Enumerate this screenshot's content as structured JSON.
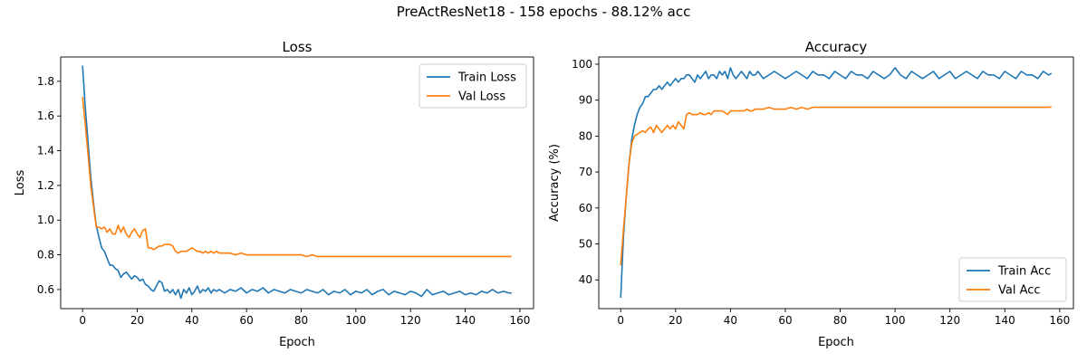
{
  "figure": {
    "title": "PreActResNet18 - 158 epochs - 88.12% acc"
  },
  "colors": {
    "train": "#1f77b4",
    "val": "#ff7f0e",
    "axis": "#000000",
    "legend_border": "#cccccc"
  },
  "chart_data": [
    {
      "type": "line",
      "title": "Loss",
      "xlabel": "Epoch",
      "ylabel": "Loss",
      "xlim": [
        -8,
        165
      ],
      "ylim": [
        0.49,
        1.94
      ],
      "xticks": [
        0,
        20,
        40,
        60,
        80,
        100,
        120,
        140,
        160
      ],
      "yticks": [
        0.6,
        0.8,
        1.0,
        1.2,
        1.4,
        1.6,
        1.8
      ],
      "ytick_labels": [
        "0.6",
        "0.8",
        "1.0",
        "1.2",
        "1.4",
        "1.6",
        "1.8"
      ],
      "grid": false,
      "legend_position": "top-right",
      "series": [
        {
          "name": "Train Loss",
          "color": "#1f77b4",
          "x": [
            0,
            1,
            2,
            3,
            4,
            5,
            6,
            7,
            8,
            9,
            10,
            11,
            12,
            13,
            14,
            15,
            16,
            17,
            18,
            19,
            20,
            21,
            22,
            23,
            24,
            25,
            26,
            27,
            28,
            29,
            30,
            31,
            32,
            33,
            34,
            35,
            36,
            37,
            38,
            39,
            40,
            41,
            42,
            43,
            44,
            45,
            46,
            47,
            48,
            49,
            50,
            52,
            54,
            56,
            58,
            60,
            62,
            64,
            66,
            68,
            70,
            72,
            74,
            76,
            78,
            80,
            82,
            84,
            86,
            88,
            90,
            92,
            94,
            96,
            98,
            100,
            102,
            104,
            106,
            108,
            110,
            112,
            114,
            116,
            118,
            120,
            122,
            124,
            126,
            128,
            130,
            132,
            134,
            136,
            138,
            140,
            142,
            144,
            146,
            148,
            150,
            152,
            154,
            156,
            157
          ],
          "y": [
            1.89,
            1.65,
            1.45,
            1.25,
            1.1,
            0.97,
            0.9,
            0.84,
            0.82,
            0.78,
            0.74,
            0.74,
            0.72,
            0.71,
            0.67,
            0.69,
            0.7,
            0.68,
            0.66,
            0.68,
            0.67,
            0.65,
            0.66,
            0.63,
            0.62,
            0.6,
            0.59,
            0.62,
            0.65,
            0.64,
            0.59,
            0.6,
            0.58,
            0.6,
            0.57,
            0.6,
            0.55,
            0.6,
            0.58,
            0.61,
            0.57,
            0.59,
            0.62,
            0.58,
            0.6,
            0.59,
            0.61,
            0.58,
            0.6,
            0.59,
            0.6,
            0.58,
            0.6,
            0.59,
            0.61,
            0.58,
            0.6,
            0.59,
            0.61,
            0.58,
            0.6,
            0.59,
            0.58,
            0.6,
            0.59,
            0.58,
            0.6,
            0.59,
            0.58,
            0.6,
            0.57,
            0.59,
            0.58,
            0.6,
            0.57,
            0.59,
            0.58,
            0.6,
            0.57,
            0.59,
            0.6,
            0.57,
            0.59,
            0.58,
            0.57,
            0.59,
            0.58,
            0.56,
            0.6,
            0.57,
            0.58,
            0.59,
            0.57,
            0.58,
            0.59,
            0.57,
            0.58,
            0.57,
            0.59,
            0.58,
            0.6,
            0.58,
            0.59,
            0.58,
            0.58
          ]
        },
        {
          "name": "Val Loss",
          "color": "#ff7f0e",
          "x": [
            0,
            1,
            2,
            3,
            4,
            5,
            6,
            7,
            8,
            9,
            10,
            11,
            12,
            13,
            14,
            15,
            16,
            17,
            18,
            19,
            20,
            21,
            22,
            23,
            24,
            25,
            26,
            27,
            28,
            29,
            30,
            31,
            32,
            33,
            34,
            35,
            36,
            37,
            38,
            39,
            40,
            41,
            42,
            43,
            44,
            45,
            46,
            47,
            48,
            49,
            50,
            52,
            54,
            56,
            58,
            60,
            62,
            64,
            66,
            68,
            70,
            72,
            74,
            76,
            78,
            80,
            82,
            84,
            86,
            88,
            90,
            92,
            94,
            96,
            98,
            100,
            102,
            104,
            106,
            108,
            110,
            112,
            114,
            116,
            118,
            120,
            122,
            124,
            126,
            128,
            130,
            132,
            134,
            136,
            138,
            140,
            142,
            144,
            146,
            148,
            150,
            152,
            154,
            156,
            157
          ],
          "y": [
            1.71,
            1.55,
            1.38,
            1.2,
            1.08,
            0.96,
            0.96,
            0.95,
            0.96,
            0.93,
            0.95,
            0.92,
            0.92,
            0.97,
            0.93,
            0.96,
            0.92,
            0.9,
            0.93,
            0.95,
            0.92,
            0.9,
            0.94,
            0.95,
            0.84,
            0.84,
            0.83,
            0.84,
            0.85,
            0.85,
            0.86,
            0.86,
            0.86,
            0.85,
            0.82,
            0.81,
            0.82,
            0.82,
            0.82,
            0.83,
            0.84,
            0.83,
            0.82,
            0.82,
            0.81,
            0.82,
            0.81,
            0.82,
            0.81,
            0.82,
            0.81,
            0.81,
            0.81,
            0.8,
            0.81,
            0.8,
            0.8,
            0.8,
            0.8,
            0.8,
            0.8,
            0.8,
            0.8,
            0.8,
            0.8,
            0.8,
            0.79,
            0.8,
            0.79,
            0.79,
            0.79,
            0.79,
            0.79,
            0.79,
            0.79,
            0.79,
            0.79,
            0.79,
            0.79,
            0.79,
            0.79,
            0.79,
            0.79,
            0.79,
            0.79,
            0.79,
            0.79,
            0.79,
            0.79,
            0.79,
            0.79,
            0.79,
            0.79,
            0.79,
            0.79,
            0.79,
            0.79,
            0.79,
            0.79,
            0.79,
            0.79,
            0.79,
            0.79,
            0.79,
            0.79
          ]
        }
      ]
    },
    {
      "type": "line",
      "title": "Accuracy",
      "xlabel": "Epoch",
      "ylabel": "Accuracy (%)",
      "xlim": [
        -8,
        165
      ],
      "ylim": [
        32,
        102
      ],
      "xticks": [
        0,
        20,
        40,
        60,
        80,
        100,
        120,
        140,
        160
      ],
      "yticks": [
        40,
        50,
        60,
        70,
        80,
        90,
        100
      ],
      "ytick_labels": [
        "40",
        "50",
        "60",
        "70",
        "80",
        "90",
        "100"
      ],
      "grid": false,
      "legend_position": "bottom-right",
      "series": [
        {
          "name": "Train Acc",
          "color": "#1f77b4",
          "x": [
            0,
            1,
            2,
            3,
            4,
            5,
            6,
            7,
            8,
            9,
            10,
            11,
            12,
            13,
            14,
            15,
            16,
            17,
            18,
            19,
            20,
            21,
            22,
            23,
            24,
            25,
            26,
            27,
            28,
            29,
            30,
            31,
            32,
            33,
            34,
            35,
            36,
            37,
            38,
            39,
            40,
            41,
            42,
            43,
            44,
            45,
            46,
            47,
            48,
            49,
            50,
            52,
            54,
            56,
            58,
            60,
            62,
            64,
            66,
            68,
            70,
            72,
            74,
            76,
            78,
            80,
            82,
            84,
            86,
            88,
            90,
            92,
            94,
            96,
            98,
            100,
            102,
            104,
            106,
            108,
            110,
            112,
            114,
            116,
            118,
            120,
            122,
            124,
            126,
            128,
            130,
            132,
            134,
            136,
            138,
            140,
            142,
            144,
            146,
            148,
            150,
            152,
            154,
            156,
            157
          ],
          "y": [
            35,
            52,
            63,
            72,
            79,
            83,
            86,
            88,
            89,
            91,
            91,
            92,
            93,
            93,
            94,
            93,
            94,
            95,
            94,
            95,
            96,
            95,
            96,
            96,
            97,
            97,
            96,
            95,
            97,
            96,
            97,
            98,
            96,
            97,
            97,
            96,
            98,
            97,
            98,
            96,
            99,
            97,
            96,
            97,
            98,
            97,
            96,
            98,
            97,
            97,
            98,
            96,
            97,
            98,
            97,
            96,
            97,
            98,
            97,
            96,
            98,
            97,
            97,
            96,
            98,
            97,
            96,
            98,
            97,
            97,
            96,
            98,
            97,
            96,
            97,
            99,
            97,
            96,
            98,
            97,
            96,
            97,
            98,
            96,
            97,
            98,
            96,
            97,
            98,
            97,
            96,
            98,
            97,
            97,
            96,
            98,
            97,
            96,
            98,
            97,
            97,
            96,
            98,
            97,
            97.5
          ]
        },
        {
          "name": "Val Acc",
          "color": "#ff7f0e",
          "x": [
            0,
            1,
            2,
            3,
            4,
            5,
            6,
            7,
            8,
            9,
            10,
            11,
            12,
            13,
            14,
            15,
            16,
            17,
            18,
            19,
            20,
            21,
            22,
            23,
            24,
            25,
            26,
            27,
            28,
            29,
            30,
            31,
            32,
            33,
            34,
            35,
            36,
            37,
            38,
            39,
            40,
            41,
            42,
            43,
            44,
            45,
            46,
            47,
            48,
            49,
            50,
            52,
            54,
            56,
            58,
            60,
            62,
            64,
            66,
            68,
            70,
            72,
            74,
            76,
            78,
            80,
            82,
            84,
            86,
            88,
            90,
            92,
            94,
            96,
            98,
            100,
            102,
            104,
            106,
            108,
            110,
            112,
            114,
            116,
            118,
            120,
            122,
            124,
            126,
            128,
            130,
            132,
            134,
            136,
            138,
            140,
            142,
            144,
            146,
            148,
            150,
            152,
            154,
            156,
            157
          ],
          "y": [
            44,
            54,
            63,
            72,
            78,
            80,
            80.5,
            81,
            81.5,
            81,
            82,
            82.5,
            81,
            83,
            82,
            81,
            82,
            83,
            82,
            83,
            82,
            84,
            83,
            82,
            86,
            86.5,
            86,
            86,
            86,
            86.5,
            86,
            86,
            86.5,
            86,
            87,
            87,
            87,
            87,
            86.5,
            86,
            87,
            87,
            87,
            87,
            87,
            87,
            87.5,
            87,
            87,
            87.5,
            87.5,
            87.5,
            88,
            87.5,
            87.5,
            87.5,
            88,
            87.5,
            88,
            87.5,
            88,
            88,
            88,
            88,
            88,
            88,
            88,
            88,
            88,
            88,
            88,
            88,
            88,
            88,
            88,
            88,
            88,
            88,
            88,
            88,
            88,
            88,
            88,
            88,
            88,
            88,
            88,
            88,
            88,
            88,
            88,
            88,
            88,
            88,
            88,
            88,
            88,
            88,
            88,
            88,
            88,
            88,
            88,
            88,
            88.1
          ]
        }
      ]
    }
  ]
}
